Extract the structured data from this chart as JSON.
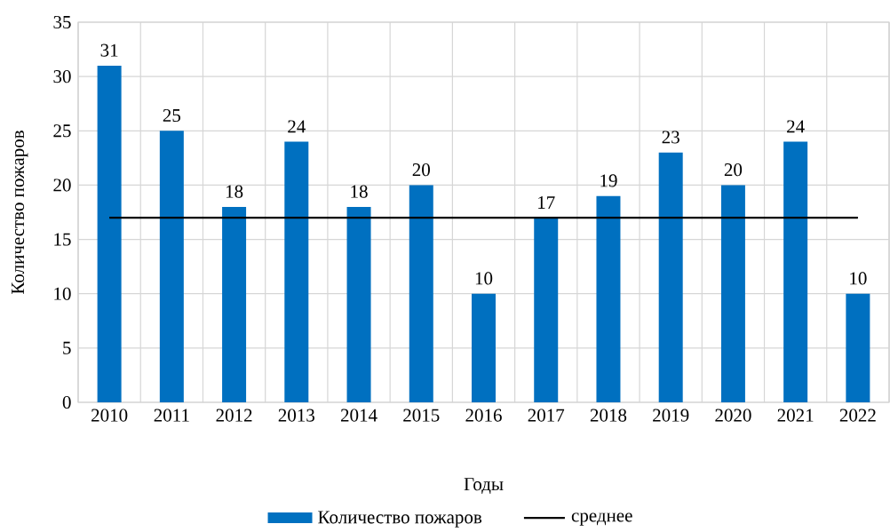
{
  "chart_data": {
    "type": "bar",
    "xlabel": "Годы",
    "ylabel": "Количество пожаров",
    "categories": [
      "2010",
      "2011",
      "2012",
      "2013",
      "2014",
      "2015",
      "2016",
      "2017",
      "2018",
      "2019",
      "2020",
      "2021",
      "2022"
    ],
    "series": [
      {
        "name": "Количество пожаров",
        "color": "#0070c0",
        "values": [
          31,
          25,
          18,
          24,
          18,
          20,
          10,
          17,
          19,
          23,
          20,
          24,
          10
        ],
        "value_labels": [
          "31",
          "25",
          "18",
          "24",
          "18",
          "20",
          "10",
          "17",
          "19",
          "23",
          "20",
          "24",
          "10"
        ]
      },
      {
        "name": "среднее",
        "type": "line",
        "color": "#000000",
        "values": [
          17,
          17,
          17,
          17,
          17,
          17,
          17,
          17,
          17,
          17,
          17,
          17,
          17
        ]
      }
    ],
    "ylim": [
      0,
      35
    ],
    "yticks": [
      0,
      5,
      10,
      15,
      20,
      25,
      30,
      35
    ],
    "grid": true,
    "legend": "bottom"
  }
}
